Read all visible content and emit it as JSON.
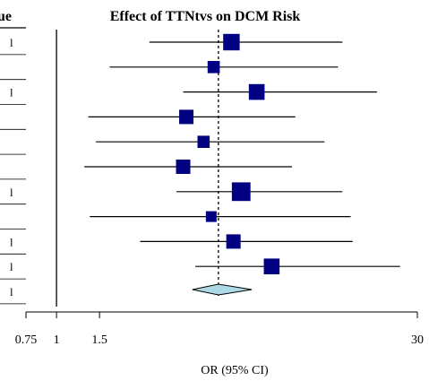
{
  "chart_data": {
    "type": "forest",
    "title": "Effect of TTNtvs on DCM Risk",
    "header_fragment": "ue",
    "xlabel": "OR (95% CI)",
    "x_scale": "log",
    "xlim": [
      0.75,
      30
    ],
    "xticks": [
      "0.75",
      "1",
      "1.5",
      "30"
    ],
    "xtick_values": [
      0.75,
      1,
      1.5,
      30
    ],
    "reference_line": 1,
    "summary_line": 4.6,
    "row_labels": [
      "l",
      "",
      "l",
      "",
      "",
      "",
      "l",
      "",
      "l",
      "l",
      "l"
    ],
    "studies": [
      {
        "or": 5.2,
        "lo": 2.4,
        "hi": 14.8,
        "weight": 1.15
      },
      {
        "or": 4.4,
        "lo": 1.65,
        "hi": 14.2,
        "weight": 0.85
      },
      {
        "or": 6.6,
        "lo": 3.3,
        "hi": 20.5,
        "weight": 1.1
      },
      {
        "or": 3.4,
        "lo": 1.35,
        "hi": 9.5,
        "weight": 1.0
      },
      {
        "or": 4.0,
        "lo": 1.45,
        "hi": 12.5,
        "weight": 0.85
      },
      {
        "or": 3.3,
        "lo": 1.3,
        "hi": 9.2,
        "weight": 1.0
      },
      {
        "or": 5.7,
        "lo": 3.1,
        "hi": 14.8,
        "weight": 1.3
      },
      {
        "or": 4.3,
        "lo": 1.37,
        "hi": 16.0,
        "weight": 0.75
      },
      {
        "or": 5.3,
        "lo": 2.2,
        "hi": 16.3,
        "weight": 1.0
      },
      {
        "or": 7.6,
        "lo": 3.7,
        "hi": 25.5,
        "weight": 1.1
      }
    ],
    "summary": {
      "or": 4.6,
      "lo": 3.6,
      "hi": 6.3
    },
    "colors": {
      "box": "#000080",
      "diamond": "#add8e6",
      "line": "#000000"
    }
  }
}
